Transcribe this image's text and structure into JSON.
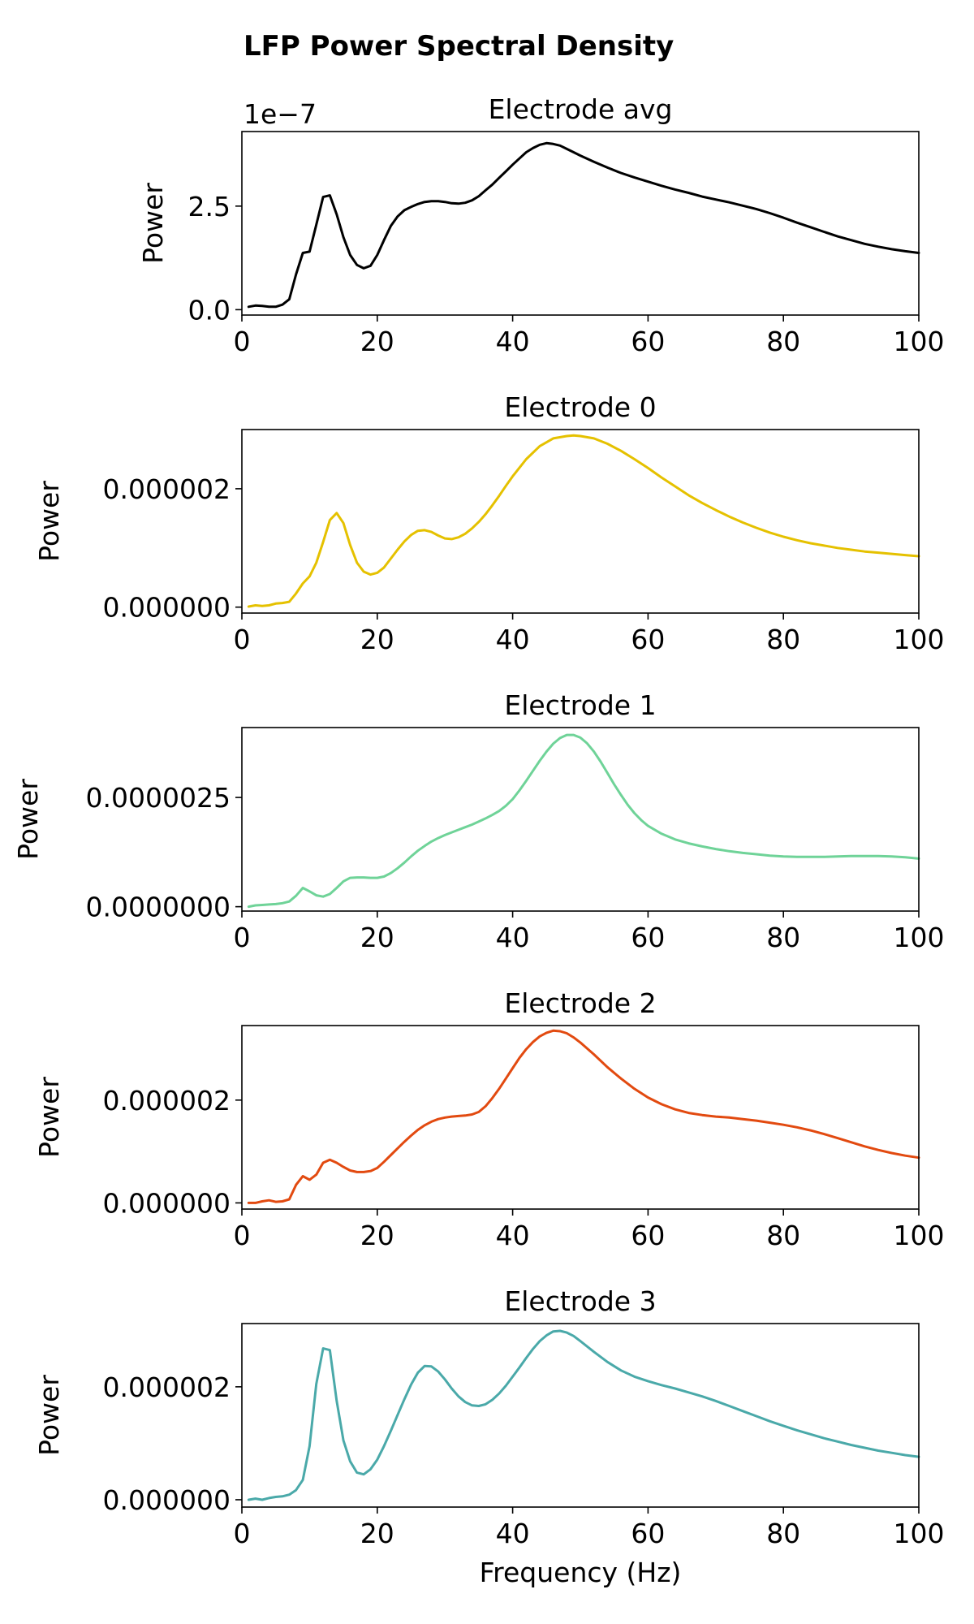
{
  "figure": {
    "title": "LFP Power Spectral Density"
  },
  "chart_data": [
    {
      "type": "line",
      "title": "Electrode avg",
      "xlabel": "",
      "ylabel": "Power",
      "y_offset_text": "1e−7",
      "xlim": [
        0,
        100
      ],
      "ylim": [
        -0.13,
        4.3
      ],
      "xticks": [
        0,
        20,
        40,
        60,
        80,
        100
      ],
      "xtick_labels": [
        "0",
        "20",
        "40",
        "60",
        "80",
        "100"
      ],
      "yticks": [
        0,
        2.5
      ],
      "ytick_labels": [
        "0.0",
        "2.5"
      ],
      "grid": false,
      "series": [
        {
          "color": "#000000",
          "x": [
            1,
            2,
            3,
            4,
            5,
            6,
            7,
            8,
            9,
            10,
            11,
            12,
            13,
            14,
            15,
            16,
            17,
            18,
            19,
            20,
            21,
            22,
            23,
            24,
            25,
            26,
            27,
            28,
            29,
            30,
            31,
            32,
            33,
            34,
            35,
            36,
            37,
            38,
            39,
            40,
            41,
            42,
            43,
            44,
            45,
            46,
            47,
            48,
            49,
            50,
            52,
            54,
            56,
            58,
            60,
            62,
            64,
            66,
            68,
            70,
            72,
            74,
            76,
            78,
            80,
            82,
            84,
            86,
            88,
            90,
            92,
            94,
            96,
            98,
            100
          ],
          "y": [
            0.07,
            0.1,
            0.09,
            0.07,
            0.07,
            0.12,
            0.25,
            0.85,
            1.37,
            1.4,
            2.05,
            2.72,
            2.76,
            2.3,
            1.75,
            1.32,
            1.08,
            1.0,
            1.06,
            1.32,
            1.68,
            2.02,
            2.25,
            2.4,
            2.48,
            2.55,
            2.6,
            2.62,
            2.62,
            2.6,
            2.57,
            2.56,
            2.58,
            2.64,
            2.74,
            2.88,
            3.02,
            3.18,
            3.34,
            3.5,
            3.65,
            3.8,
            3.9,
            3.98,
            4.02,
            4.0,
            3.96,
            3.88,
            3.8,
            3.72,
            3.57,
            3.43,
            3.3,
            3.19,
            3.09,
            2.99,
            2.9,
            2.82,
            2.73,
            2.66,
            2.59,
            2.51,
            2.43,
            2.33,
            2.22,
            2.1,
            1.99,
            1.88,
            1.77,
            1.68,
            1.59,
            1.52,
            1.46,
            1.41,
            1.37
          ]
        }
      ]
    },
    {
      "type": "line",
      "title": "Electrode 0",
      "xlabel": "",
      "ylabel": "Power",
      "xlim": [
        0,
        100
      ],
      "ylim": [
        -1e-07,
        3e-06
      ],
      "xticks": [
        0,
        20,
        40,
        60,
        80,
        100
      ],
      "xtick_labels": [
        "0",
        "20",
        "40",
        "60",
        "80",
        "100"
      ],
      "yticks": [
        0,
        2e-06
      ],
      "ytick_labels": [
        "0.000000",
        "0.000002"
      ],
      "grid": false,
      "series": [
        {
          "color": "#e5c100",
          "x": [
            1,
            2,
            3,
            4,
            5,
            6,
            7,
            8,
            9,
            10,
            11,
            12,
            13,
            14,
            15,
            16,
            17,
            18,
            19,
            20,
            21,
            22,
            23,
            24,
            25,
            26,
            27,
            28,
            29,
            30,
            31,
            32,
            33,
            34,
            35,
            36,
            37,
            38,
            39,
            40,
            42,
            44,
            46,
            48,
            49,
            50,
            52,
            54,
            56,
            58,
            60,
            62,
            64,
            66,
            68,
            70,
            72,
            74,
            76,
            78,
            80,
            82,
            84,
            86,
            88,
            90,
            92,
            94,
            96,
            98,
            100
          ],
          "y": [
            1e-08,
            3e-08,
            2e-08,
            3e-08,
            6e-08,
            7e-08,
            9e-08,
            2.3e-07,
            4e-07,
            5.2e-07,
            7.5e-07,
            1.1e-06,
            1.47e-06,
            1.59e-06,
            1.42e-06,
            1.05e-06,
            7.5e-07,
            6e-07,
            5.5e-07,
            5.8e-07,
            6.7e-07,
            8.2e-07,
            9.7e-07,
            1.11e-06,
            1.22e-06,
            1.29e-06,
            1.3e-06,
            1.27e-06,
            1.21e-06,
            1.16e-06,
            1.15e-06,
            1.18e-06,
            1.24e-06,
            1.33e-06,
            1.44e-06,
            1.57e-06,
            1.72e-06,
            1.88e-06,
            2.05e-06,
            2.21e-06,
            2.5e-06,
            2.72e-06,
            2.85e-06,
            2.89e-06,
            2.9e-06,
            2.89e-06,
            2.85e-06,
            2.76e-06,
            2.64e-06,
            2.5e-06,
            2.35e-06,
            2.19e-06,
            2.04e-06,
            1.89e-06,
            1.76e-06,
            1.64e-06,
            1.53e-06,
            1.43e-06,
            1.34e-06,
            1.26e-06,
            1.19e-06,
            1.13e-06,
            1.08e-06,
            1.04e-06,
            1e-06,
            9.7e-07,
            9.4e-07,
            9.2e-07,
            9e-07,
            8.8e-07,
            8.6e-07
          ]
        }
      ]
    },
    {
      "type": "line",
      "title": "Electrode 1",
      "xlabel": "",
      "ylabel": "Power",
      "xlim": [
        0,
        100
      ],
      "ylim": [
        -1e-07,
        4.1e-06
      ],
      "xticks": [
        0,
        20,
        40,
        60,
        80,
        100
      ],
      "xtick_labels": [
        "0",
        "20",
        "40",
        "60",
        "80",
        "100"
      ],
      "yticks": [
        0,
        2.5e-06
      ],
      "ytick_labels": [
        "0.0000000",
        "0.0000025"
      ],
      "grid": false,
      "series": [
        {
          "color": "#6fd398",
          "x": [
            1,
            2,
            3,
            4,
            5,
            6,
            7,
            8,
            9,
            10,
            11,
            12,
            13,
            14,
            15,
            16,
            17,
            18,
            19,
            20,
            21,
            22,
            23,
            24,
            25,
            26,
            27,
            28,
            29,
            30,
            31,
            32,
            33,
            34,
            35,
            36,
            37,
            38,
            39,
            40,
            41,
            42,
            43,
            44,
            45,
            46,
            47,
            48,
            49,
            50,
            51,
            52,
            53,
            54,
            55,
            56,
            57,
            58,
            59,
            60,
            62,
            64,
            66,
            68,
            70,
            72,
            74,
            76,
            78,
            80,
            82,
            84,
            86,
            88,
            90,
            92,
            94,
            96,
            98,
            100
          ],
          "y": [
            0.0,
            3e-08,
            4e-08,
            5e-08,
            6e-08,
            8e-08,
            1.2e-07,
            2.5e-07,
            4.3e-07,
            3.5e-07,
            2.6e-07,
            2.3e-07,
            2.9e-07,
            4.3e-07,
            5.8e-07,
            6.6e-07,
            6.7e-07,
            6.7e-07,
            6.6e-07,
            6.6e-07,
            6.9e-07,
            7.7e-07,
            8.8e-07,
            1.01e-06,
            1.15e-06,
            1.28e-06,
            1.39e-06,
            1.49e-06,
            1.57e-06,
            1.64e-06,
            1.7e-06,
            1.76e-06,
            1.82e-06,
            1.88e-06,
            1.95e-06,
            2.02e-06,
            2.1e-06,
            2.19e-06,
            2.31e-06,
            2.46e-06,
            2.66e-06,
            2.88e-06,
            3.11e-06,
            3.34e-06,
            3.55e-06,
            3.73e-06,
            3.86e-06,
            3.93e-06,
            3.93e-06,
            3.87e-06,
            3.74e-06,
            3.55e-06,
            3.32e-06,
            3.06e-06,
            2.8e-06,
            2.56e-06,
            2.33e-06,
            2.14e-06,
            1.98e-06,
            1.85e-06,
            1.67e-06,
            1.54e-06,
            1.45e-06,
            1.38e-06,
            1.32e-06,
            1.27e-06,
            1.23e-06,
            1.2e-06,
            1.17e-06,
            1.15e-06,
            1.14e-06,
            1.14e-06,
            1.14e-06,
            1.15e-06,
            1.16e-06,
            1.16e-06,
            1.16e-06,
            1.15e-06,
            1.13e-06,
            1.1e-06
          ]
        }
      ]
    },
    {
      "type": "line",
      "title": "Electrode 2",
      "xlabel": "",
      "ylabel": "Power",
      "xlim": [
        0,
        100
      ],
      "ylim": [
        -1.2e-07,
        3.45e-06
      ],
      "xticks": [
        0,
        20,
        40,
        60,
        80,
        100
      ],
      "xtick_labels": [
        "0",
        "20",
        "40",
        "60",
        "80",
        "100"
      ],
      "yticks": [
        0,
        2e-06
      ],
      "ytick_labels": [
        "0.000000",
        "0.000002"
      ],
      "grid": false,
      "series": [
        {
          "color": "#e24a10",
          "x": [
            1,
            2,
            3,
            4,
            5,
            6,
            7,
            8,
            9,
            10,
            11,
            12,
            13,
            14,
            15,
            16,
            17,
            18,
            19,
            20,
            21,
            22,
            23,
            24,
            25,
            26,
            27,
            28,
            29,
            30,
            31,
            32,
            33,
            34,
            35,
            36,
            37,
            38,
            39,
            40,
            41,
            42,
            43,
            44,
            45,
            46,
            47,
            48,
            49,
            50,
            52,
            54,
            56,
            58,
            60,
            62,
            64,
            66,
            68,
            70,
            72,
            74,
            76,
            78,
            80,
            82,
            84,
            86,
            88,
            90,
            92,
            94,
            96,
            98,
            100
          ],
          "y": [
            0.0,
            0.0,
            3e-08,
            5e-08,
            2e-08,
            3e-08,
            7e-08,
            3.5e-07,
            5.2e-07,
            4.5e-07,
            5.5e-07,
            7.8e-07,
            8.4e-07,
            7.8e-07,
            7e-07,
            6.3e-07,
            6e-07,
            6e-07,
            6.2e-07,
            6.8e-07,
            8e-07,
            9.3e-07,
            1.06e-06,
            1.19e-06,
            1.31e-06,
            1.42e-06,
            1.51e-06,
            1.58e-06,
            1.63e-06,
            1.66e-06,
            1.68e-06,
            1.69e-06,
            1.7e-06,
            1.72e-06,
            1.77e-06,
            1.88e-06,
            2.04e-06,
            2.22e-06,
            2.42e-06,
            2.62e-06,
            2.82e-06,
            2.99e-06,
            3.13e-06,
            3.24e-06,
            3.31e-06,
            3.35e-06,
            3.34e-06,
            3.3e-06,
            3.22e-06,
            3.12e-06,
            2.89e-06,
            2.64e-06,
            2.42e-06,
            2.22e-06,
            2.05e-06,
            1.92e-06,
            1.82e-06,
            1.75e-06,
            1.71e-06,
            1.68e-06,
            1.66e-06,
            1.63e-06,
            1.6e-06,
            1.56e-06,
            1.52e-06,
            1.47e-06,
            1.41e-06,
            1.34e-06,
            1.26e-06,
            1.18e-06,
            1.1e-06,
            1.03e-06,
            9.7e-07,
            9.2e-07,
            8.8e-07
          ]
        }
      ]
    },
    {
      "type": "line",
      "title": "Electrode 3",
      "xlabel": "Frequency (Hz)",
      "ylabel": "Power",
      "xlim": [
        0,
        100
      ],
      "ylim": [
        -1.3e-07,
        3.12e-06
      ],
      "xticks": [
        0,
        20,
        40,
        60,
        80,
        100
      ],
      "xtick_labels": [
        "0",
        "20",
        "40",
        "60",
        "80",
        "100"
      ],
      "yticks": [
        0,
        2e-06
      ],
      "ytick_labels": [
        "0.000000",
        "0.000002"
      ],
      "grid": false,
      "series": [
        {
          "color": "#4aa9a9",
          "x": [
            1,
            2,
            3,
            4,
            5,
            6,
            7,
            8,
            9,
            10,
            11,
            12,
            13,
            14,
            15,
            16,
            17,
            18,
            19,
            20,
            21,
            22,
            23,
            24,
            25,
            26,
            27,
            28,
            29,
            30,
            31,
            32,
            33,
            34,
            35,
            36,
            37,
            38,
            39,
            40,
            41,
            42,
            43,
            44,
            45,
            46,
            47,
            48,
            49,
            50,
            52,
            54,
            56,
            58,
            60,
            62,
            64,
            66,
            68,
            70,
            72,
            74,
            76,
            78,
            80,
            82,
            84,
            86,
            88,
            90,
            92,
            94,
            96,
            98,
            100
          ],
          "y": [
            0.0,
            2e-08,
            0.0,
            3e-08,
            5e-08,
            6e-08,
            9e-08,
            1.7e-07,
            3.5e-07,
            9.5e-07,
            2.05e-06,
            2.68e-06,
            2.65e-06,
            1.75e-06,
            1.05e-06,
            6.8e-07,
            4.8e-07,
            4.5e-07,
            5.4e-07,
            7.1e-07,
            9.5e-07,
            1.22e-06,
            1.5e-06,
            1.78e-06,
            2.04e-06,
            2.25e-06,
            2.37e-06,
            2.36e-06,
            2.27e-06,
            2.13e-06,
            1.97e-06,
            1.83e-06,
            1.73e-06,
            1.67e-06,
            1.66e-06,
            1.69e-06,
            1.77e-06,
            1.88e-06,
            2.02e-06,
            2.18e-06,
            2.34e-06,
            2.51e-06,
            2.67e-06,
            2.81e-06,
            2.91e-06,
            2.98e-06,
            2.99e-06,
            2.96e-06,
            2.9e-06,
            2.81e-06,
            2.62e-06,
            2.44e-06,
            2.29e-06,
            2.18e-06,
            2.1e-06,
            2.03e-06,
            1.97e-06,
            1.9e-06,
            1.83e-06,
            1.75e-06,
            1.66e-06,
            1.57e-06,
            1.48e-06,
            1.39e-06,
            1.31e-06,
            1.23e-06,
            1.16e-06,
            1.09e-06,
            1.03e-06,
            9.7e-07,
            9.2e-07,
            8.7e-07,
            8.3e-07,
            7.9e-07,
            7.6e-07
          ]
        }
      ]
    }
  ]
}
